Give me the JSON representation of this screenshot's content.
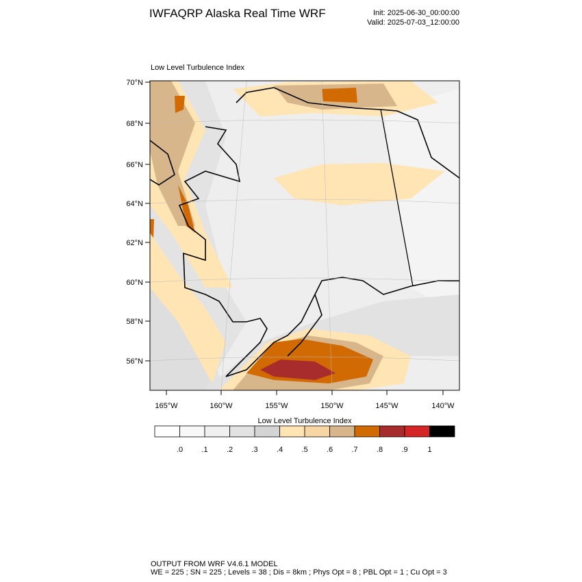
{
  "header": {
    "title": "IWFAQRP Alaska Real Time WRF",
    "init": "Init: 2025-06-30_00:00:00",
    "valid": "Valid: 2025-07-03_12:00:00"
  },
  "map": {
    "label": "Low Level Turbulence Index",
    "lat_labels": [
      "70°N",
      "68°N",
      "66°N",
      "64°N",
      "62°N",
      "60°N",
      "58°N",
      "56°N"
    ],
    "lon_labels": [
      "165°W",
      "160°W",
      "155°W",
      "150°W",
      "145°W",
      "140°W"
    ]
  },
  "colorbar": {
    "title": "Low Level Turbulence Index",
    "colors": [
      "#ffffff",
      "#f8f8f8",
      "#f0f0f0",
      "#e2e2e2",
      "#d4d4d4",
      "#ffe4b4",
      "#f7d6a4",
      "#d7b68b",
      "#d26a04",
      "#a82c2c",
      "#d42626",
      "#000000"
    ],
    "labels": [
      ".0",
      ".1",
      ".2",
      ".3",
      ".4",
      ".5",
      ".6",
      ".7",
      ".8",
      ".9",
      "1"
    ]
  },
  "footer": {
    "line1": "OUTPUT FROM WRF V4.6.1 MODEL",
    "line2": "WE = 225 ; SN = 225 ; Levels = 38 ; Dis = 8km ; Phys Opt = 8 ; PBL Opt = 1 ; Cu Opt = 3"
  }
}
